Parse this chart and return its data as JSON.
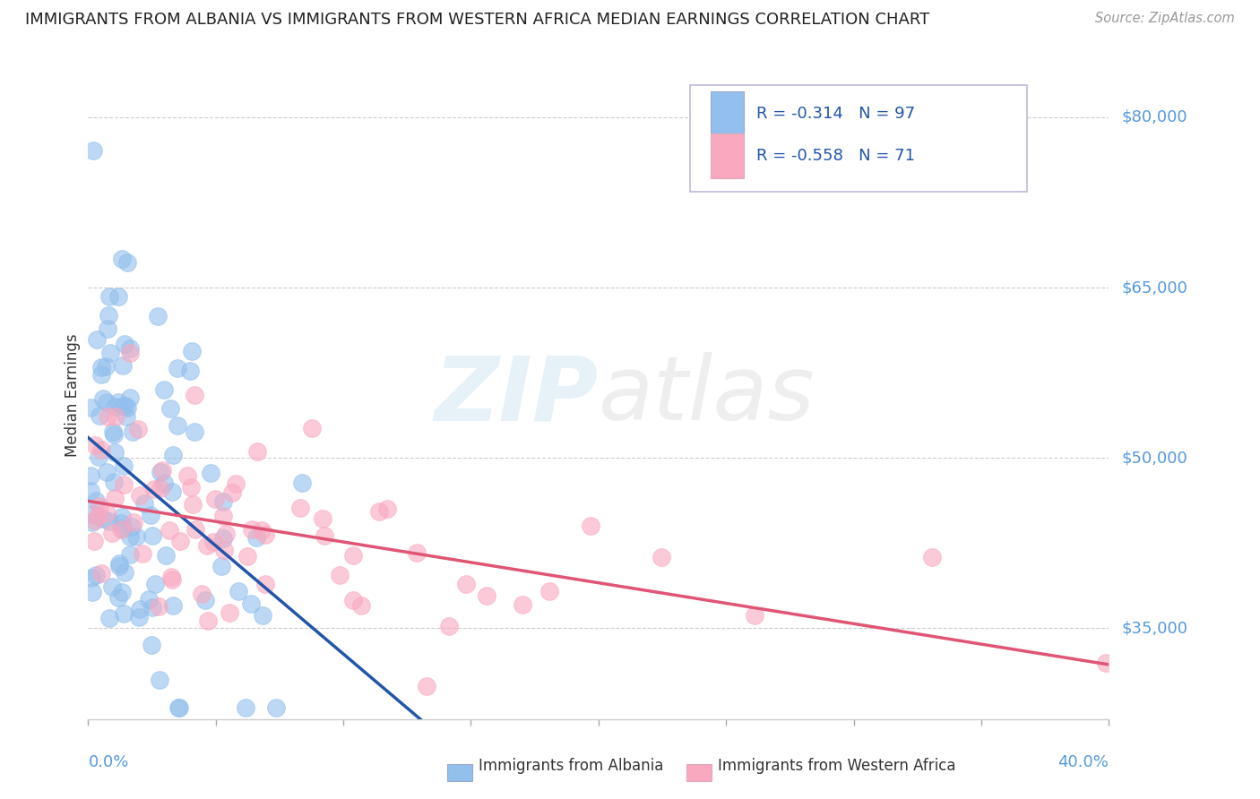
{
  "title": "IMMIGRANTS FROM ALBANIA VS IMMIGRANTS FROM WESTERN AFRICA MEDIAN EARNINGS CORRELATION CHART",
  "source": "Source: ZipAtlas.com",
  "ylabel": "Median Earnings",
  "y_ticks": [
    35000,
    50000,
    65000,
    80000
  ],
  "y_tick_labels": [
    "$35,000",
    "$50,000",
    "$65,000",
    "$80,000"
  ],
  "xlim": [
    0.0,
    0.4
  ],
  "ylim": [
    27000,
    84000
  ],
  "albania_R": -0.314,
  "albania_N": 97,
  "western_africa_R": -0.558,
  "western_africa_N": 71,
  "albania_color": "#92BFED",
  "western_africa_color": "#F9A8C0",
  "albania_line_color": "#2255AA",
  "western_africa_line_color": "#E05575",
  "dashed_line_color": "#AACCEE",
  "legend_label_albania": "Immigrants from Albania",
  "legend_label_western_africa": "Immigrants from Western Africa",
  "seed_albania": 7,
  "seed_western_africa": 15
}
